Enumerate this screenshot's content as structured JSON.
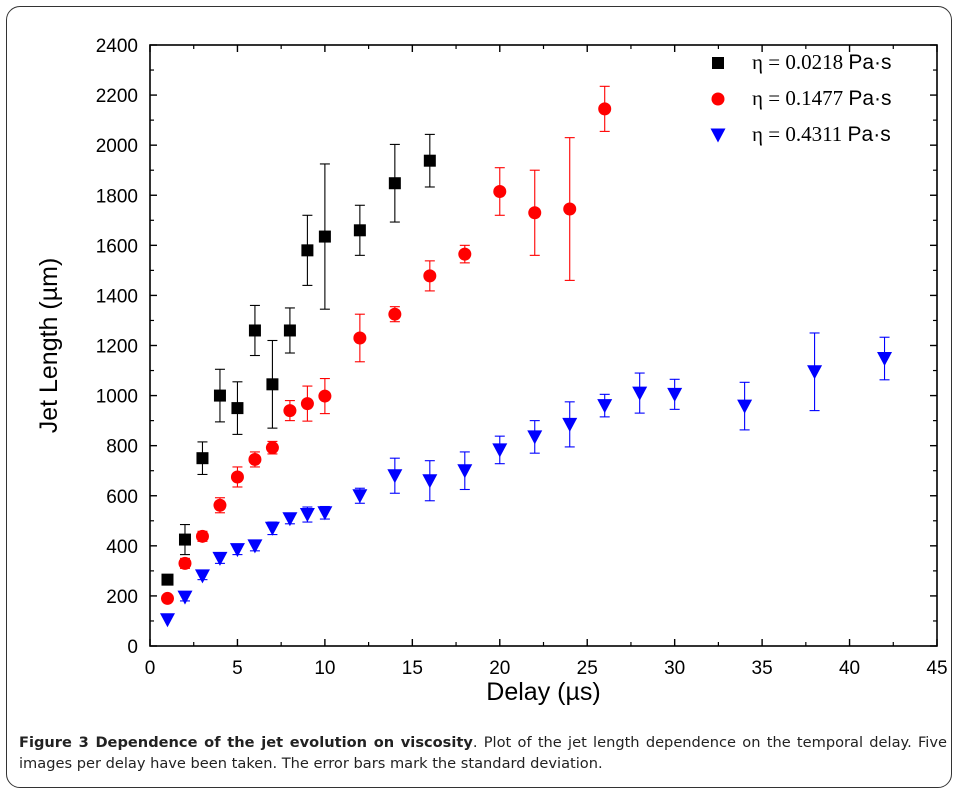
{
  "caption": {
    "title": "Figure 3 Dependence of the jet evolution on viscosity",
    "text": ". Plot of the jet length dependence on the temporal delay. Five images per delay have been taken. The error bars mark the standard deviation."
  },
  "chart_data": {
    "type": "scatter",
    "xlabel": "Delay (µs)",
    "ylabel": "Jet Length (µm)",
    "xlim": [
      0,
      45
    ],
    "ylim": [
      0,
      2400
    ],
    "xticks": [
      0,
      5,
      10,
      15,
      20,
      25,
      30,
      35,
      40,
      45
    ],
    "yticks": [
      0,
      200,
      400,
      600,
      800,
      1000,
      1200,
      1400,
      1600,
      1800,
      2000,
      2200,
      2400
    ],
    "grid": false,
    "legend_position": "top-right",
    "series": [
      {
        "name": "η = 0.0218 Pa·s",
        "label_math": "η = 0.0218",
        "label_unit": "Pa·s",
        "marker": "square",
        "color": "#000000",
        "points": [
          {
            "x": 1,
            "y": 265,
            "err": 0
          },
          {
            "x": 2,
            "y": 425,
            "err": 60
          },
          {
            "x": 3,
            "y": 750,
            "err": 65
          },
          {
            "x": 4,
            "y": 1000,
            "err": 105
          },
          {
            "x": 5,
            "y": 950,
            "err": 105
          },
          {
            "x": 6,
            "y": 1260,
            "err": 100
          },
          {
            "x": 7,
            "y": 1045,
            "err": 175
          },
          {
            "x": 8,
            "y": 1260,
            "err": 90
          },
          {
            "x": 9,
            "y": 1580,
            "err": 140
          },
          {
            "x": 10,
            "y": 1635,
            "err": 290
          },
          {
            "x": 12,
            "y": 1660,
            "err": 100
          },
          {
            "x": 14,
            "y": 1848,
            "err": 155
          },
          {
            "x": 16,
            "y": 1938,
            "err": 105
          }
        ]
      },
      {
        "name": "η = 0.1477 Pa·s",
        "label_math": "η = 0.1477",
        "label_unit": "Pa·s",
        "marker": "circle",
        "color": "#ff0000",
        "points": [
          {
            "x": 1,
            "y": 190,
            "err": 0
          },
          {
            "x": 2,
            "y": 330,
            "err": 20
          },
          {
            "x": 3,
            "y": 438,
            "err": 20
          },
          {
            "x": 4,
            "y": 562,
            "err": 30
          },
          {
            "x": 5,
            "y": 675,
            "err": 40
          },
          {
            "x": 6,
            "y": 745,
            "err": 30
          },
          {
            "x": 7,
            "y": 792,
            "err": 25
          },
          {
            "x": 8,
            "y": 940,
            "err": 40
          },
          {
            "x": 9,
            "y": 968,
            "err": 70
          },
          {
            "x": 10,
            "y": 998,
            "err": 70
          },
          {
            "x": 12,
            "y": 1230,
            "err": 95
          },
          {
            "x": 14,
            "y": 1325,
            "err": 30
          },
          {
            "x": 16,
            "y": 1478,
            "err": 60
          },
          {
            "x": 18,
            "y": 1565,
            "err": 35
          },
          {
            "x": 20,
            "y": 1815,
            "err": 95
          },
          {
            "x": 22,
            "y": 1730,
            "err": 170
          },
          {
            "x": 24,
            "y": 1745,
            "err": 285
          },
          {
            "x": 26,
            "y": 2145,
            "err": 90
          }
        ]
      },
      {
        "name": "η = 0.4311 Pa·s",
        "label_math": "η = 0.4311",
        "label_unit": "Pa·s",
        "marker": "triangle-down",
        "color": "#0000ff",
        "points": [
          {
            "x": 1,
            "y": 105,
            "err": 0
          },
          {
            "x": 2,
            "y": 195,
            "err": 15
          },
          {
            "x": 3,
            "y": 280,
            "err": 15
          },
          {
            "x": 4,
            "y": 350,
            "err": 20
          },
          {
            "x": 5,
            "y": 385,
            "err": 20
          },
          {
            "x": 6,
            "y": 400,
            "err": 20
          },
          {
            "x": 7,
            "y": 470,
            "err": 25
          },
          {
            "x": 8,
            "y": 508,
            "err": 20
          },
          {
            "x": 9,
            "y": 525,
            "err": 30
          },
          {
            "x": 10,
            "y": 532,
            "err": 25
          },
          {
            "x": 12,
            "y": 600,
            "err": 30
          },
          {
            "x": 14,
            "y": 680,
            "err": 70
          },
          {
            "x": 16,
            "y": 660,
            "err": 80
          },
          {
            "x": 18,
            "y": 700,
            "err": 75
          },
          {
            "x": 20,
            "y": 783,
            "err": 55
          },
          {
            "x": 22,
            "y": 835,
            "err": 65
          },
          {
            "x": 24,
            "y": 885,
            "err": 90
          },
          {
            "x": 26,
            "y": 960,
            "err": 45
          },
          {
            "x": 28,
            "y": 1010,
            "err": 80
          },
          {
            "x": 30,
            "y": 1005,
            "err": 60
          },
          {
            "x": 34,
            "y": 958,
            "err": 95
          },
          {
            "x": 38,
            "y": 1095,
            "err": 155
          },
          {
            "x": 42,
            "y": 1148,
            "err": 85
          }
        ]
      }
    ]
  }
}
